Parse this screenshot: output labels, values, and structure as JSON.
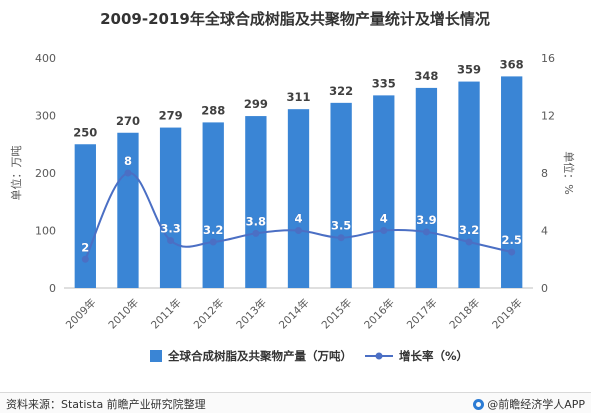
{
  "chart_data": {
    "type": "bar",
    "title": "2009-2019年全球合成树脂及共聚物产量统计及增长情况",
    "categories": [
      "2009年",
      "2010年",
      "2011年",
      "2012年",
      "2013年",
      "2014年",
      "2015年",
      "2016年",
      "2017年",
      "2018年",
      "2019年"
    ],
    "series": [
      {
        "name": "全球合成树脂及共聚物产量（万吨）",
        "type": "bar",
        "axis": "left",
        "values": [
          250,
          270,
          279,
          288,
          299,
          311,
          322,
          335,
          348,
          359,
          368
        ]
      },
      {
        "name": "增长率（%）",
        "type": "line",
        "axis": "right",
        "values": [
          2,
          8,
          3.3,
          3.2,
          3.8,
          4,
          3.5,
          4,
          3.9,
          3.2,
          2.5
        ]
      }
    ],
    "ylabel": "单位：万吨",
    "y2label": "单位：%",
    "ylim": [
      0,
      400
    ],
    "yticks": [
      0,
      100,
      200,
      300,
      400
    ],
    "y2lim": [
      0,
      16
    ],
    "y2ticks": [
      0,
      4,
      8,
      12,
      16
    ],
    "legend": "bottom",
    "grid": false,
    "colors": {
      "bar": "#3a85d5",
      "line": "#4b6fc4",
      "point_label": "#ffffff"
    }
  },
  "footer": {
    "source": "资料来源：Statista 前瞻产业研究院整理",
    "brand": "@前瞻经济学人APP"
  }
}
